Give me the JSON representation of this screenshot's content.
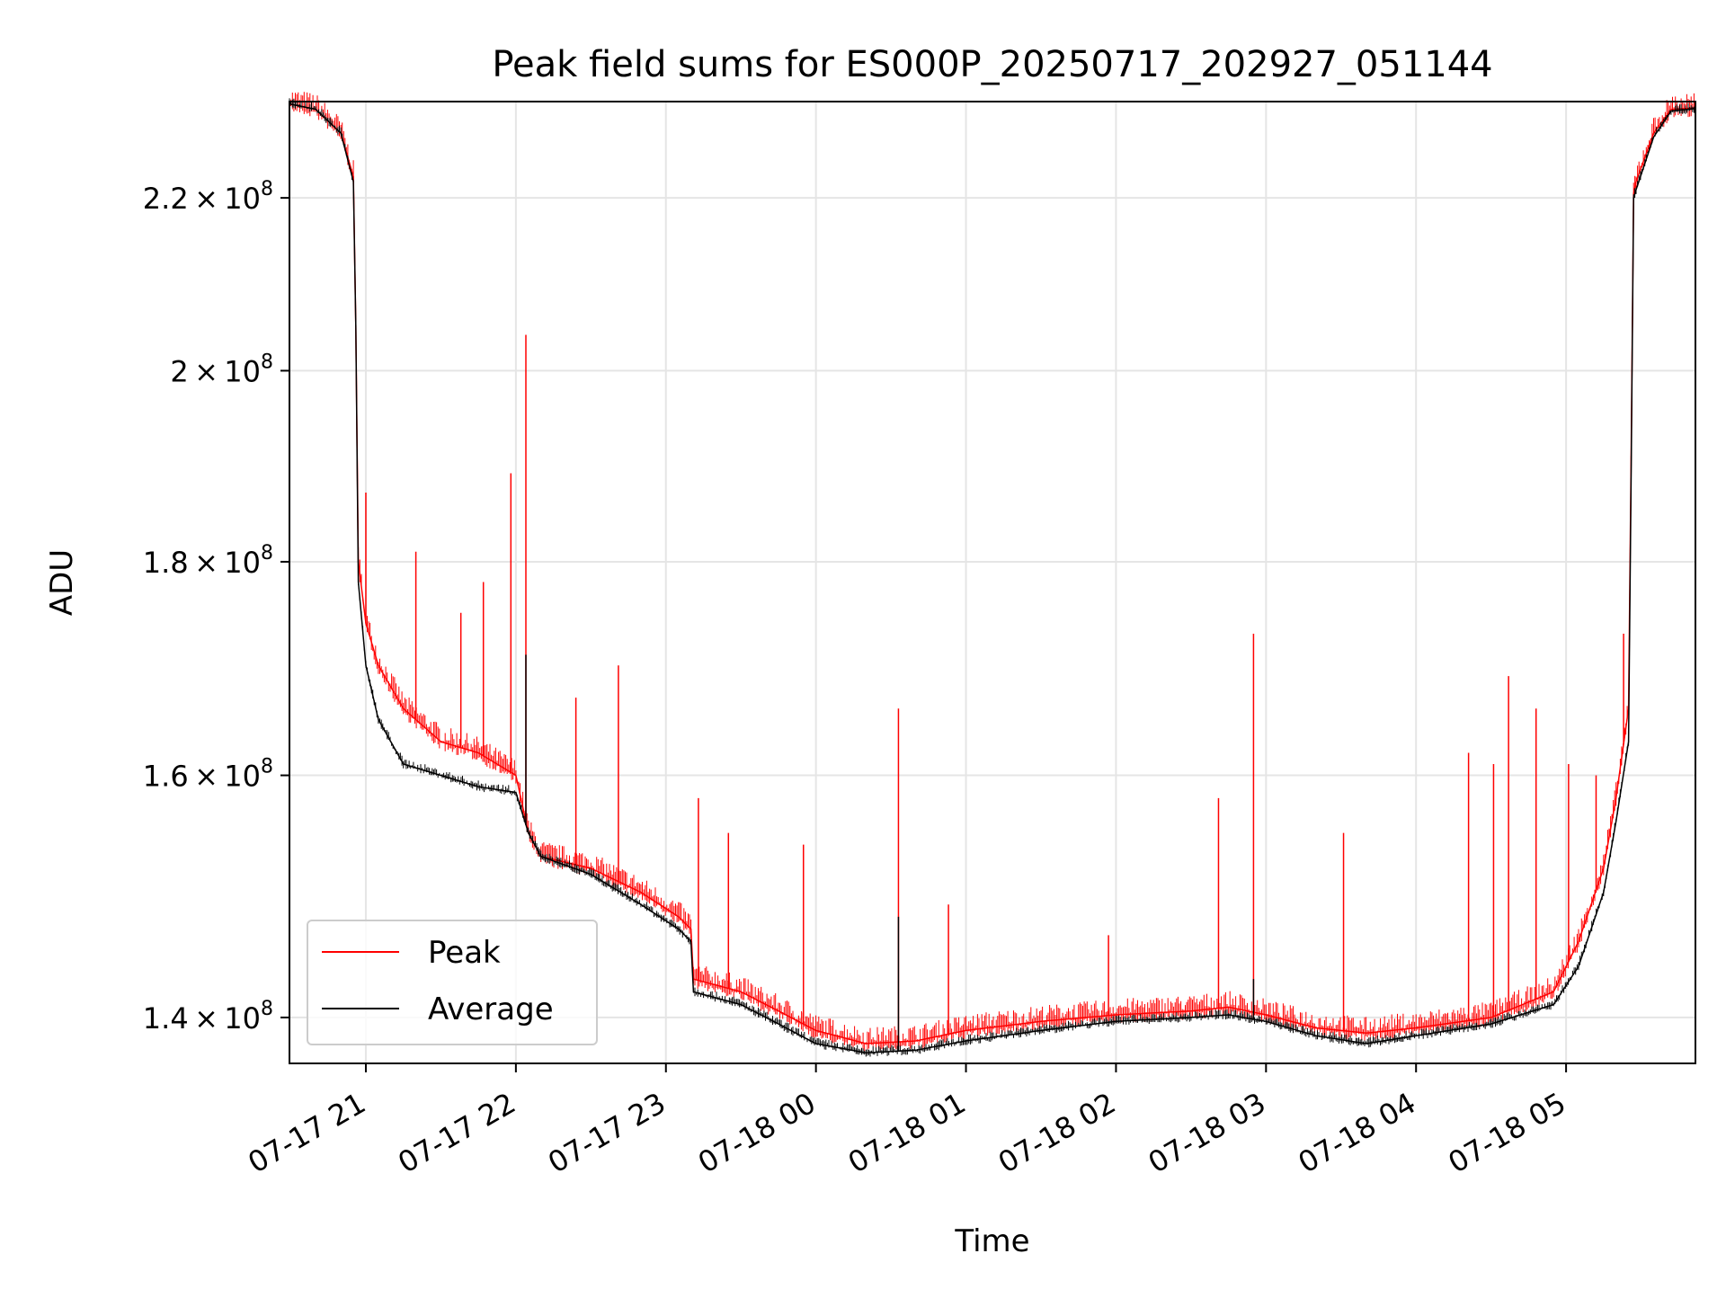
{
  "chart_data": {
    "type": "line",
    "title": "Peak field sums for ES000P_20250717_202927_051144",
    "xlabel": "Time",
    "ylabel": "ADU",
    "y_scale": "log",
    "grid": true,
    "legend_position": "lower-left",
    "xlim": [
      "2025-07-17 20:29:27",
      "2025-07-18 05:51:44"
    ],
    "ylim": [
      136500000,
      232000000
    ],
    "x_ticks": [
      {
        "value": "2025-07-17 21:00",
        "label": "07-17 21"
      },
      {
        "value": "2025-07-17 22:00",
        "label": "07-17 22"
      },
      {
        "value": "2025-07-17 23:00",
        "label": "07-17 23"
      },
      {
        "value": "2025-07-18 00:00",
        "label": "07-18 00"
      },
      {
        "value": "2025-07-18 01:00",
        "label": "07-18 01"
      },
      {
        "value": "2025-07-18 02:00",
        "label": "07-18 02"
      },
      {
        "value": "2025-07-18 03:00",
        "label": "07-18 03"
      },
      {
        "value": "2025-07-18 04:00",
        "label": "07-18 04"
      },
      {
        "value": "2025-07-18 05:00",
        "label": "07-18 05"
      }
    ],
    "y_ticks": [
      {
        "value": 140000000,
        "mant": "1.4",
        "exp": "8"
      },
      {
        "value": 160000000,
        "mant": "1.6",
        "exp": "8"
      },
      {
        "value": 180000000,
        "mant": "1.8",
        "exp": "8"
      },
      {
        "value": 200000000,
        "mant": "2",
        "exp": "8"
      },
      {
        "value": 220000000,
        "mant": "2.2",
        "exp": "8"
      }
    ],
    "series": [
      {
        "name": "Peak",
        "color": "#ff0000",
        "x": [
          "2025-07-17 20:29:27",
          "2025-07-17 20:40",
          "2025-07-17 20:50",
          "2025-07-17 20:55",
          "2025-07-17 20:56",
          "2025-07-17 20:57",
          "2025-07-17 21:00",
          "2025-07-17 21:05",
          "2025-07-17 21:15",
          "2025-07-17 21:30",
          "2025-07-17 21:45",
          "2025-07-17 22:00",
          "2025-07-17 22:05",
          "2025-07-17 22:10",
          "2025-07-17 22:30",
          "2025-07-17 22:50",
          "2025-07-17 23:05",
          "2025-07-17 23:10",
          "2025-07-17 23:11",
          "2025-07-17 23:30",
          "2025-07-17 23:45",
          "2025-07-18 00:00",
          "2025-07-18 00:20",
          "2025-07-18 00:40",
          "2025-07-18 01:00",
          "2025-07-18 01:30",
          "2025-07-18 02:00",
          "2025-07-18 02:30",
          "2025-07-18 02:45",
          "2025-07-18 03:00",
          "2025-07-18 03:20",
          "2025-07-18 03:40",
          "2025-07-18 04:00",
          "2025-07-18 04:30",
          "2025-07-18 04:55",
          "2025-07-18 05:05",
          "2025-07-18 05:15",
          "2025-07-18 05:20",
          "2025-07-18 05:25",
          "2025-07-18 05:26",
          "2025-07-18 05:27",
          "2025-07-18 05:28",
          "2025-07-18 05:35",
          "2025-07-18 05:42",
          "2025-07-18 05:51:44"
        ],
        "y": [
          231700000,
          231000000,
          228000000,
          222600000,
          205000000,
          180000000,
          174000000,
          170000000,
          166000000,
          163000000,
          162000000,
          160000000,
          155000000,
          153000000,
          152000000,
          150000000,
          148000000,
          147000000,
          143000000,
          142000000,
          140500000,
          139000000,
          138000000,
          138200000,
          139000000,
          139700000,
          140200000,
          140500000,
          140800000,
          140200000,
          139200000,
          138800000,
          139200000,
          140000000,
          142000000,
          146000000,
          152000000,
          158000000,
          166000000,
          190000000,
          220500000,
          222000000,
          228000000,
          231000000,
          231200000
        ],
        "spikes": [
          {
            "x": "2025-07-17 21:00",
            "y": 187000000
          },
          {
            "x": "2025-07-17 21:20",
            "y": 181000000
          },
          {
            "x": "2025-07-17 21:38",
            "y": 175000000
          },
          {
            "x": "2025-07-17 21:47",
            "y": 178000000
          },
          {
            "x": "2025-07-17 21:58",
            "y": 189000000
          },
          {
            "x": "2025-07-17 22:04",
            "y": 204000000
          },
          {
            "x": "2025-07-17 22:24",
            "y": 167000000
          },
          {
            "x": "2025-07-17 22:41",
            "y": 170000000
          },
          {
            "x": "2025-07-17 23:13",
            "y": 158000000
          },
          {
            "x": "2025-07-17 23:25",
            "y": 155000000
          },
          {
            "x": "2025-07-17 23:55",
            "y": 154000000
          },
          {
            "x": "2025-07-18 00:33",
            "y": 166000000
          },
          {
            "x": "2025-07-18 00:53",
            "y": 149000000
          },
          {
            "x": "2025-07-18 01:57",
            "y": 146500000
          },
          {
            "x": "2025-07-18 02:41",
            "y": 158000000
          },
          {
            "x": "2025-07-18 02:55",
            "y": 173000000
          },
          {
            "x": "2025-07-18 03:31",
            "y": 155000000
          },
          {
            "x": "2025-07-18 04:21",
            "y": 162000000
          },
          {
            "x": "2025-07-18 04:31",
            "y": 161000000
          },
          {
            "x": "2025-07-18 04:37",
            "y": 169000000
          },
          {
            "x": "2025-07-18 04:48",
            "y": 166000000
          },
          {
            "x": "2025-07-18 05:01",
            "y": 161000000
          },
          {
            "x": "2025-07-18 05:12",
            "y": 160000000
          },
          {
            "x": "2025-07-18 05:23",
            "y": 173000000
          }
        ]
      },
      {
        "name": "Average",
        "color": "#000000",
        "x": [
          "2025-07-17 20:29:27",
          "2025-07-17 20:40",
          "2025-07-17 20:50",
          "2025-07-17 20:55",
          "2025-07-17 20:56",
          "2025-07-17 20:57",
          "2025-07-17 21:00",
          "2025-07-17 21:05",
          "2025-07-17 21:15",
          "2025-07-17 21:30",
          "2025-07-17 21:45",
          "2025-07-17 22:00",
          "2025-07-17 22:05",
          "2025-07-17 22:10",
          "2025-07-17 22:30",
          "2025-07-17 22:50",
          "2025-07-17 23:05",
          "2025-07-17 23:10",
          "2025-07-17 23:11",
          "2025-07-17 23:30",
          "2025-07-17 23:45",
          "2025-07-18 00:00",
          "2025-07-18 00:20",
          "2025-07-18 00:40",
          "2025-07-18 01:00",
          "2025-07-18 01:30",
          "2025-07-18 02:00",
          "2025-07-18 02:30",
          "2025-07-18 02:45",
          "2025-07-18 03:00",
          "2025-07-18 03:20",
          "2025-07-18 03:40",
          "2025-07-18 04:00",
          "2025-07-18 04:30",
          "2025-07-18 04:55",
          "2025-07-18 05:05",
          "2025-07-18 05:15",
          "2025-07-18 05:20",
          "2025-07-18 05:25",
          "2025-07-18 05:26",
          "2025-07-18 05:27",
          "2025-07-18 05:28",
          "2025-07-18 05:35",
          "2025-07-18 05:42",
          "2025-07-18 05:51:44"
        ],
        "y": [
          231700000,
          231000000,
          228000000,
          222000000,
          205000000,
          178000000,
          170000000,
          165000000,
          161000000,
          160000000,
          159000000,
          158500000,
          155000000,
          153000000,
          151500000,
          149000000,
          147000000,
          146000000,
          142000000,
          141000000,
          139500000,
          138000000,
          137300000,
          137500000,
          138200000,
          139000000,
          139700000,
          140000000,
          140200000,
          139700000,
          138600000,
          138000000,
          138600000,
          139500000,
          141000000,
          144000000,
          150000000,
          156000000,
          163000000,
          188000000,
          220000000,
          221000000,
          227500000,
          230800000,
          231100000
        ],
        "spikes": [
          {
            "x": "2025-07-17 22:04",
            "y": 171000000
          },
          {
            "x": "2025-07-18 00:33",
            "y": 148000000
          },
          {
            "x": "2025-07-18 02:55",
            "y": 143000000
          }
        ]
      }
    ]
  }
}
